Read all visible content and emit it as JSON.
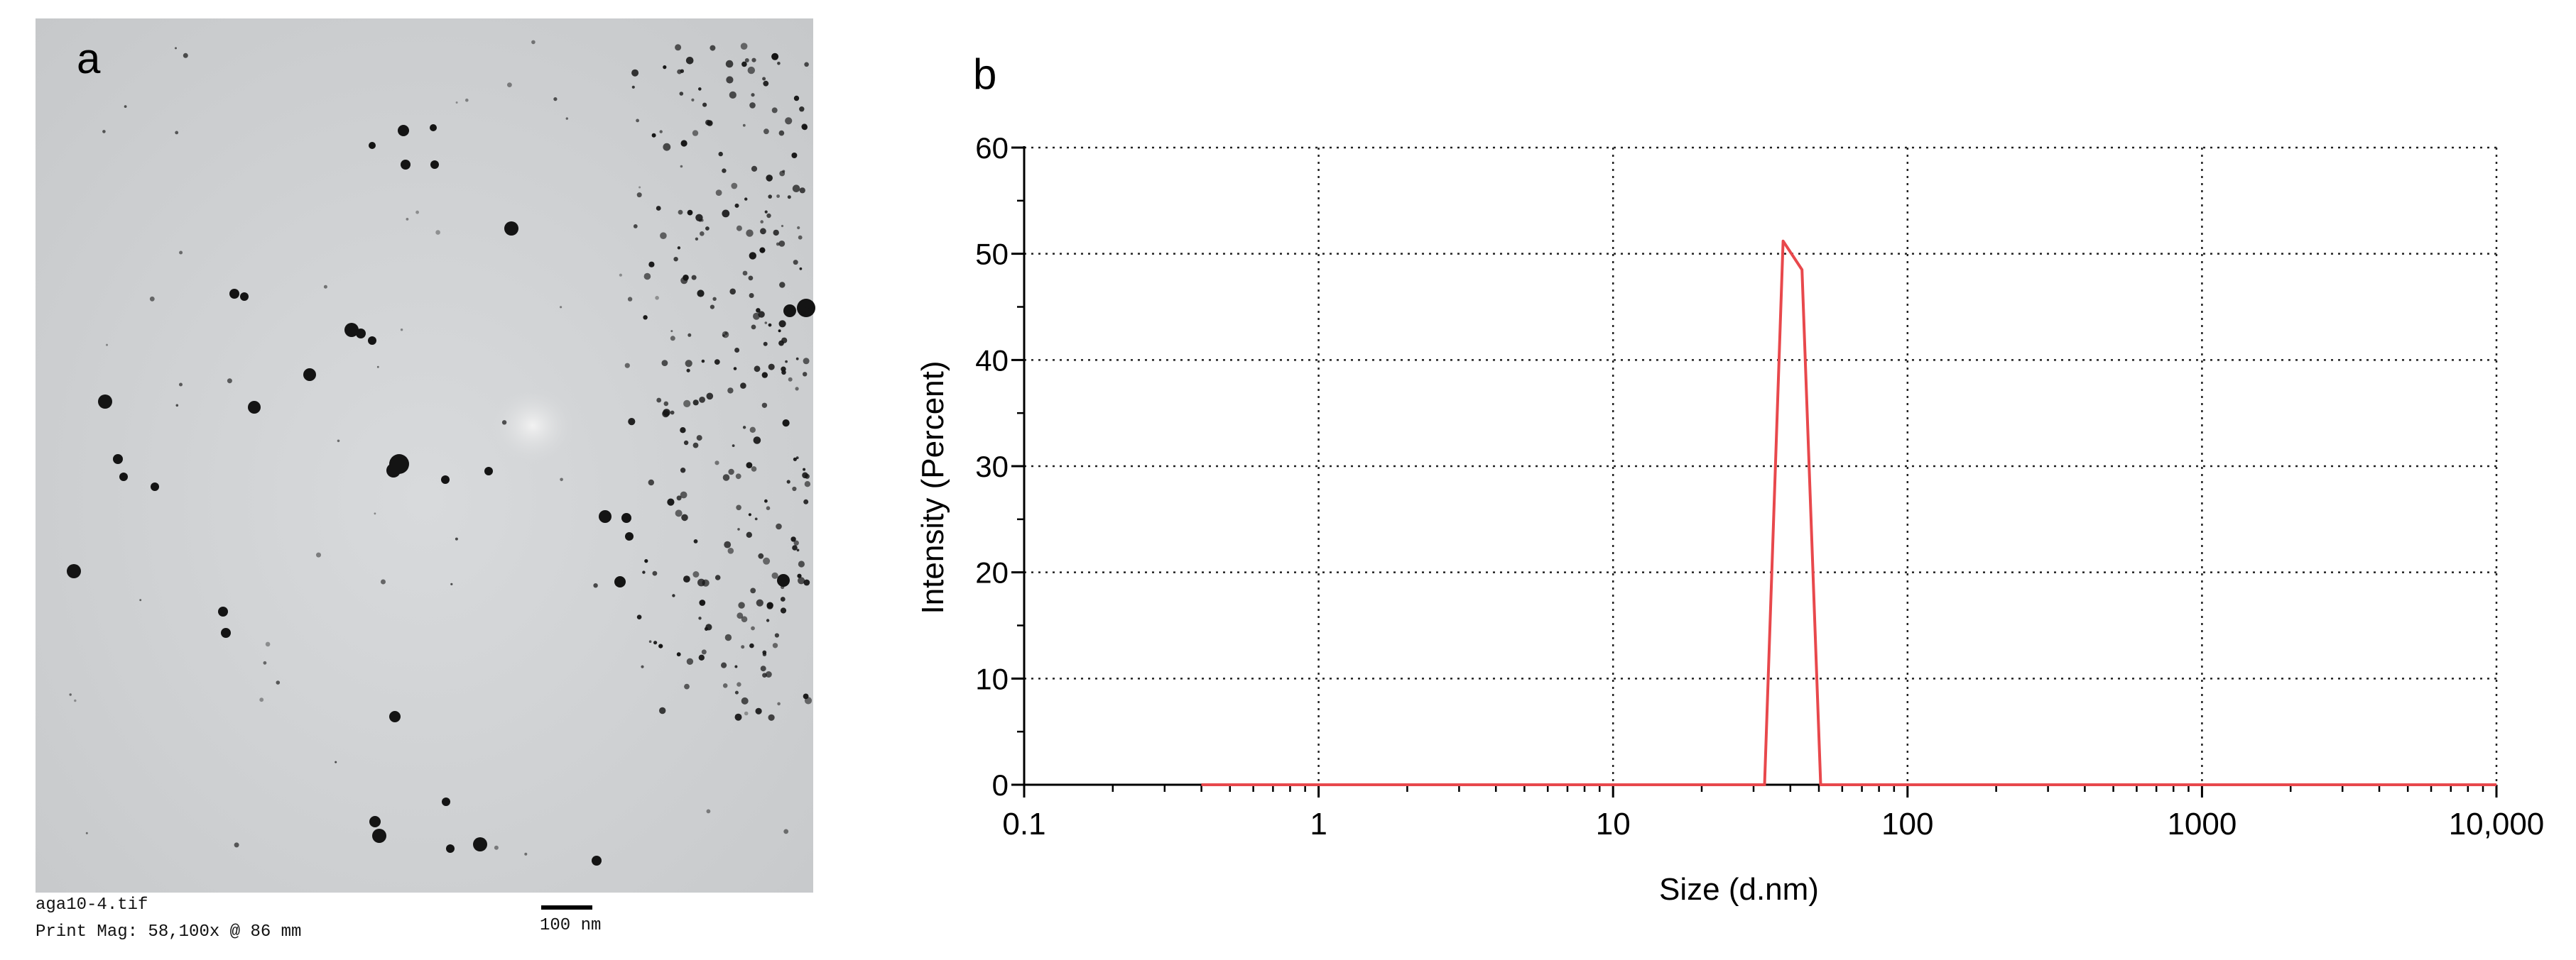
{
  "panels": {
    "a": {
      "label": "a",
      "filename": "aga10-4.tif",
      "print_mag": "Print Mag: 58,100x @ 86 mm",
      "scale_bar_label": "100 nm"
    },
    "b": {
      "label": "b"
    }
  },
  "chart_data": {
    "type": "line",
    "xscale": "log",
    "xlim": [
      0.1,
      10000
    ],
    "ylim": [
      0,
      60
    ],
    "xlabel": "Size (d.nm)",
    "ylabel": "Intensity (Percent)",
    "x_ticks": [
      0.1,
      1,
      10,
      100,
      1000,
      10000
    ],
    "x_tick_labels": [
      "0.1",
      "1",
      "10",
      "100",
      "1000",
      "10,000"
    ],
    "y_ticks": [
      0,
      10,
      20,
      30,
      40,
      50,
      60
    ],
    "y_tick_labels": [
      "0",
      "10",
      "20",
      "30",
      "40",
      "50",
      "60"
    ],
    "grid": true,
    "series": [
      {
        "color": "#e8484c",
        "x": [
          0.4,
          10,
          20,
          30,
          32.7,
          37.8,
          43.8,
          50.7,
          58.8,
          100,
          1000,
          10000
        ],
        "y": [
          0,
          0,
          0,
          0,
          0,
          51.2,
          48.5,
          0,
          0,
          0,
          0,
          0
        ]
      }
    ]
  }
}
